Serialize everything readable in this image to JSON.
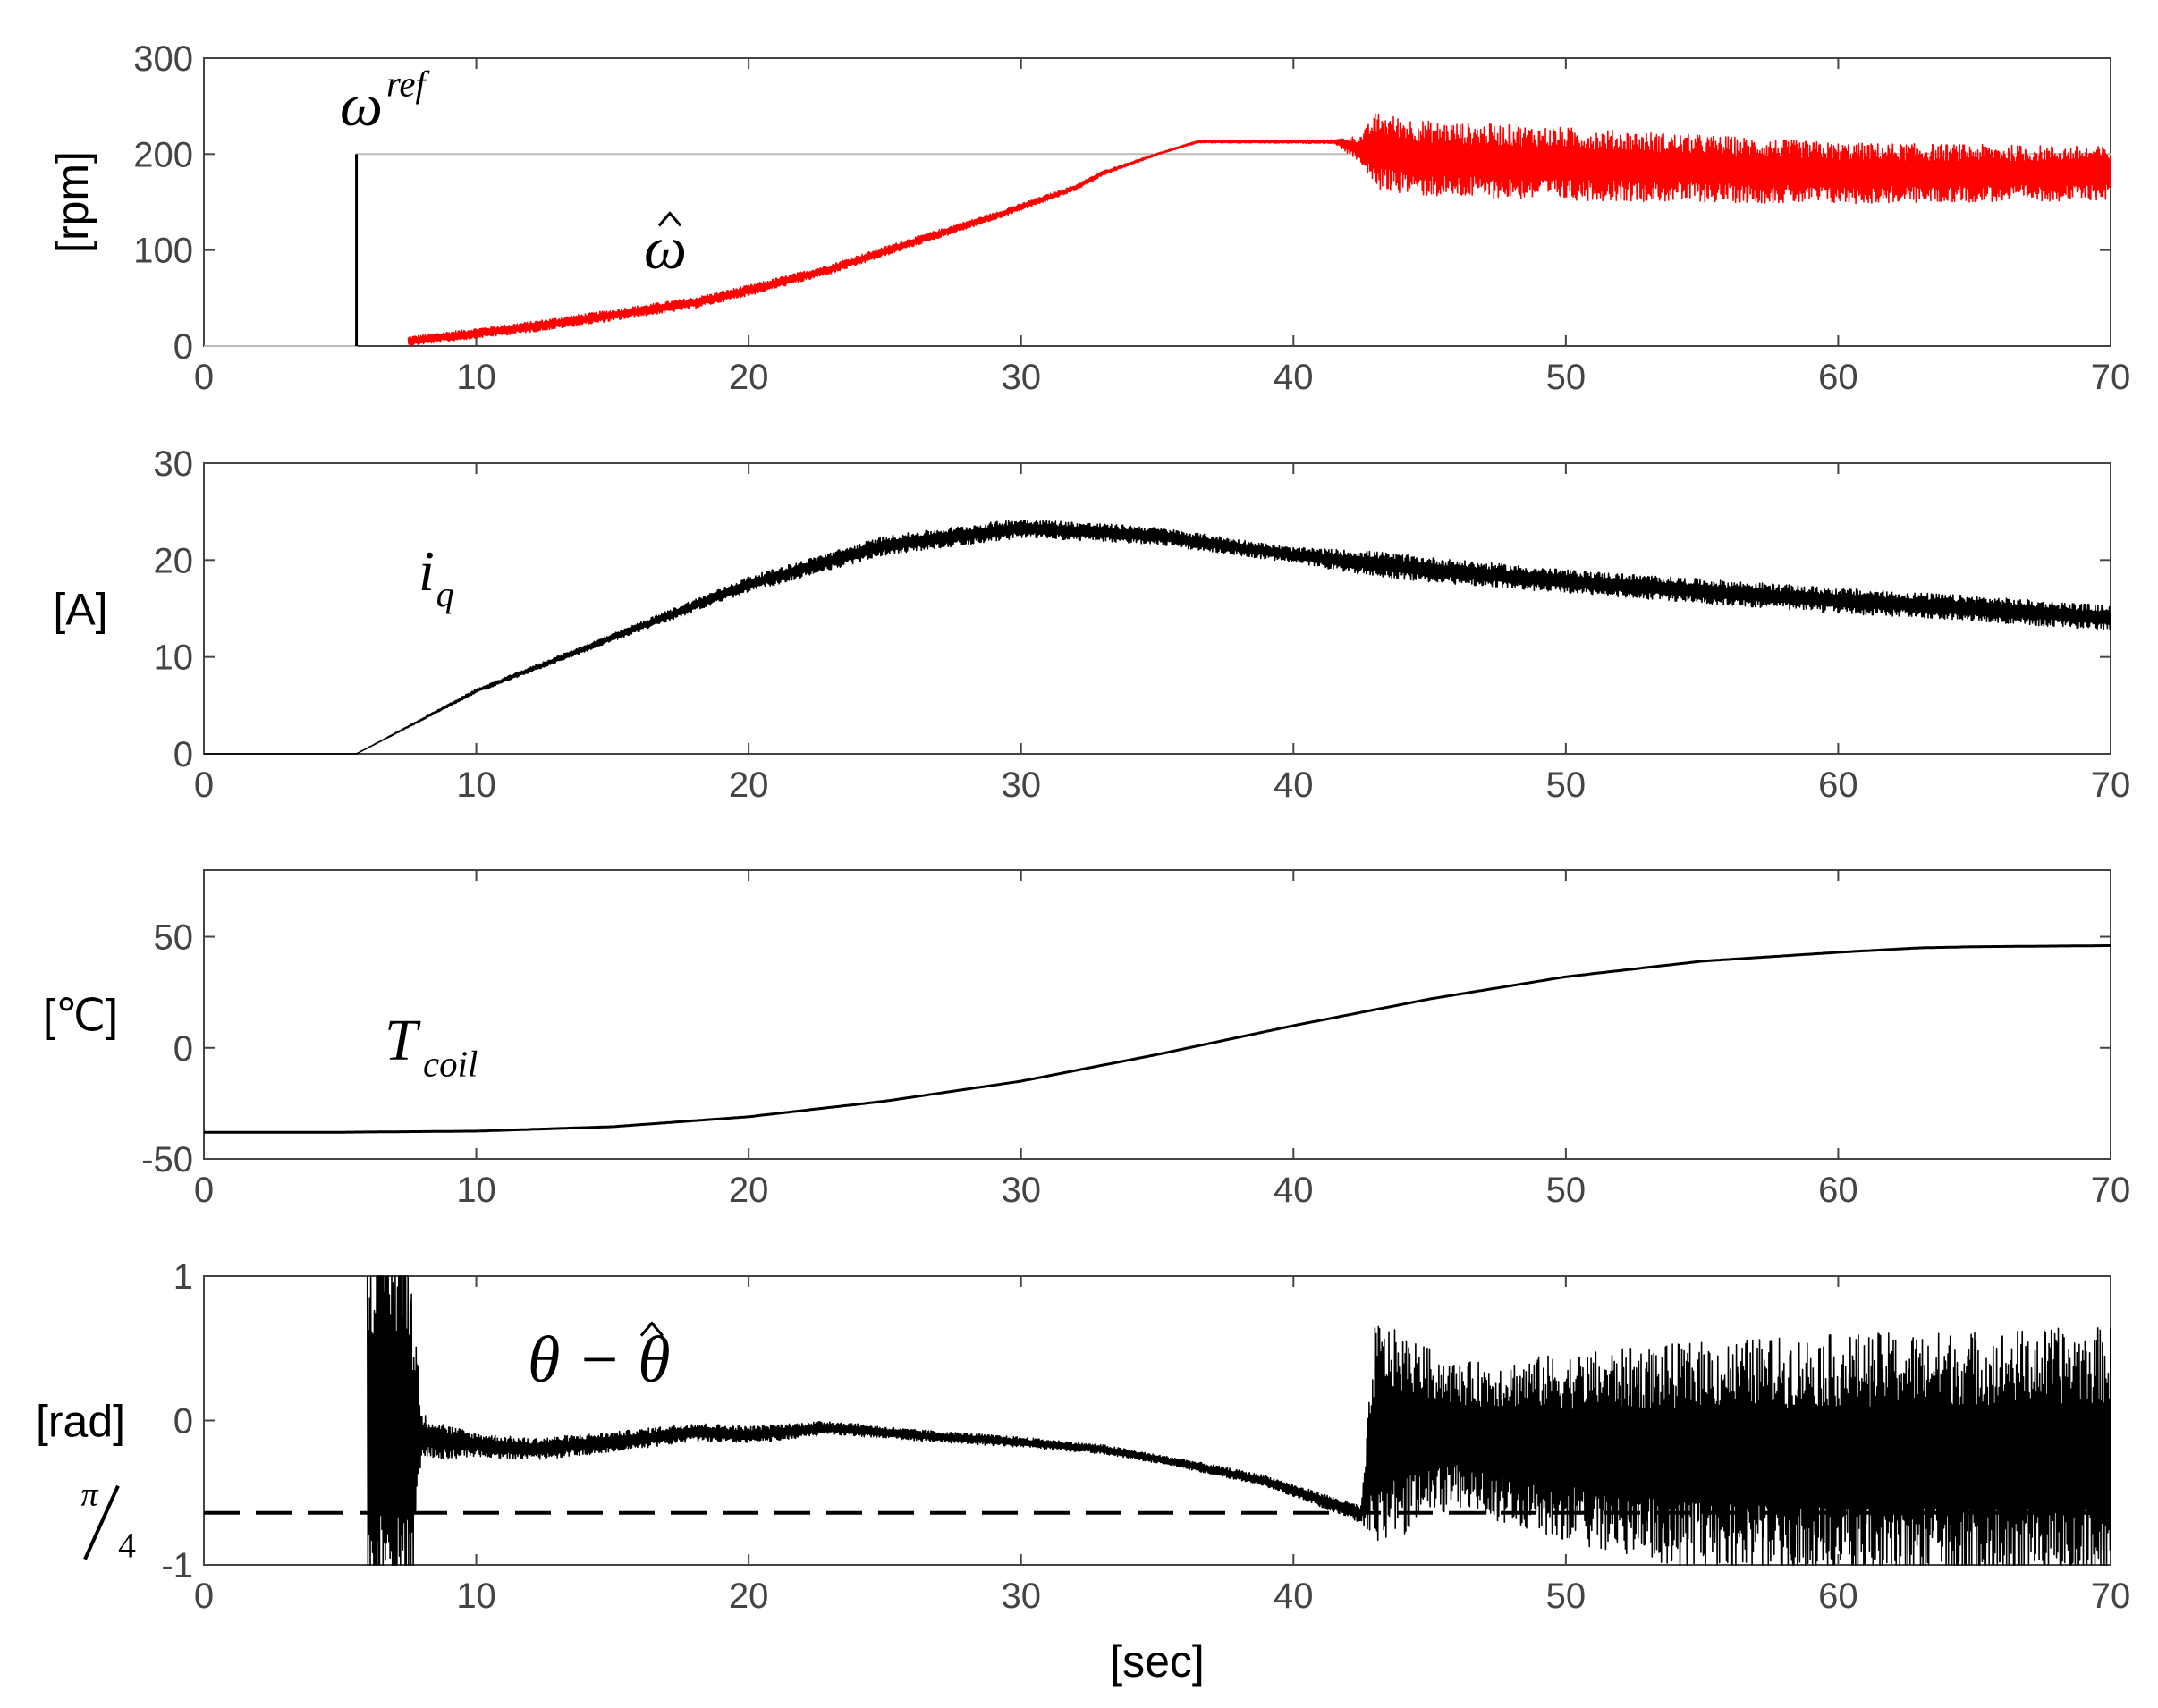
{
  "chart_data": [
    {
      "type": "line",
      "ylabel": "[rpm]",
      "xlabel": "",
      "xlim": [
        0,
        70
      ],
      "ylim": [
        0,
        300
      ],
      "x_ticks": [
        "0",
        "10",
        "20",
        "30",
        "40",
        "50",
        "60",
        "70"
      ],
      "y_ticks": [
        "0",
        "100",
        "200",
        "300"
      ],
      "annotations": [
        {
          "base": "ω",
          "sup": "ref",
          "sub": "",
          "hat": false
        },
        {
          "base": "ω",
          "sup": "",
          "sub": "",
          "hat": true
        }
      ],
      "series": [
        {
          "name": "ω ref",
          "color": "#000000",
          "steps": [
            [
              0,
              0
            ],
            [
              5.6,
              0
            ],
            [
              5.6,
              200
            ],
            [
              70,
              200
            ]
          ]
        },
        {
          "name": "ω hat",
          "color": "#ff0000",
          "kind": "noisy",
          "points": [
            [
              7.5,
              5
            ],
            [
              9,
              10
            ],
            [
              12,
              20
            ],
            [
              15,
              32
            ],
            [
              18,
              45
            ],
            [
              20,
              58
            ],
            [
              23,
              80
            ],
            [
              26,
              108
            ],
            [
              29,
              135
            ],
            [
              32,
              165
            ],
            [
              33,
              180
            ],
            [
              35,
              200
            ],
            [
              36.5,
              213
            ],
            [
              41.5,
              213
            ],
            [
              42.5,
              205
            ],
            [
              45,
              195
            ],
            [
              50,
              190
            ],
            [
              55,
              185
            ],
            [
              60,
              180
            ],
            [
              65,
              180
            ],
            [
              70,
              180
            ]
          ],
          "noise": [
            [
              7.5,
              5
            ],
            [
              15,
              6
            ],
            [
              25,
              5
            ],
            [
              32,
              3
            ],
            [
              35,
              1
            ],
            [
              41.5,
              2
            ],
            [
              42.5,
              15
            ],
            [
              43,
              40
            ],
            [
              50,
              38
            ],
            [
              60,
              32
            ],
            [
              70,
              28
            ]
          ]
        }
      ]
    },
    {
      "type": "line",
      "ylabel": "[A]",
      "xlabel": "",
      "xlim": [
        0,
        70
      ],
      "ylim": [
        0,
        30
      ],
      "x_ticks": [
        "0",
        "10",
        "20",
        "30",
        "40",
        "50",
        "60",
        "70"
      ],
      "y_ticks": [
        "0",
        "10",
        "20",
        "30"
      ],
      "annotations": [
        {
          "base": "i",
          "sup": "",
          "sub": "q",
          "hat": false
        }
      ],
      "series": [
        {
          "name": "i_q",
          "color": "#000000",
          "kind": "noisy",
          "points": [
            [
              0,
              0
            ],
            [
              5.6,
              0
            ],
            [
              10,
              6.5
            ],
            [
              15,
              12
            ],
            [
              20,
              17.5
            ],
            [
              25,
              21.5
            ],
            [
              30,
              23.3
            ],
            [
              35,
              22.5
            ],
            [
              40,
              20.5
            ],
            [
              45,
              19
            ],
            [
              50,
              17.8
            ],
            [
              55,
              16.8
            ],
            [
              60,
              15.8
            ],
            [
              65,
              15
            ],
            [
              70,
              14
            ]
          ],
          "noise": [
            [
              0,
              0
            ],
            [
              5.6,
              0
            ],
            [
              10,
              0.2
            ],
            [
              15,
              0.4
            ],
            [
              20,
              0.8
            ],
            [
              25,
              1.0
            ],
            [
              30,
              1.0
            ],
            [
              40,
              0.8
            ],
            [
              43,
              1.3
            ],
            [
              50,
              1.2
            ],
            [
              60,
              1.3
            ],
            [
              70,
              1.3
            ]
          ]
        }
      ]
    },
    {
      "type": "line",
      "ylabel": "[℃]",
      "xlabel": "",
      "xlim": [
        0,
        70
      ],
      "ylim": [
        -50,
        80
      ],
      "x_ticks": [
        "0",
        "10",
        "20",
        "30",
        "40",
        "50",
        "60",
        "70"
      ],
      "y_ticks": [
        "-50",
        "0",
        "50"
      ],
      "y_tick_values": [
        -50,
        0,
        50
      ],
      "annotations": [
        {
          "base": "T",
          "sup": "",
          "sub": "coil",
          "hat": false
        }
      ],
      "series": [
        {
          "name": "T_coil",
          "color": "#000000",
          "kind": "smooth",
          "points": [
            [
              0,
              -38
            ],
            [
              5,
              -38
            ],
            [
              10,
              -37.5
            ],
            [
              15,
              -35.5
            ],
            [
              20,
              -31
            ],
            [
              25,
              -24
            ],
            [
              30,
              -15
            ],
            [
              35,
              -3
            ],
            [
              40,
              10
            ],
            [
              45,
              22
            ],
            [
              50,
              32
            ],
            [
              55,
              39
            ],
            [
              60,
              43
            ],
            [
              63,
              45
            ],
            [
              65,
              45.5
            ],
            [
              70,
              46
            ]
          ]
        }
      ]
    },
    {
      "type": "line",
      "ylabel": "[rad]",
      "xlabel": "[sec]",
      "xlim": [
        0,
        70
      ],
      "ylim": [
        -1,
        1
      ],
      "x_ticks": [
        "0",
        "10",
        "20",
        "30",
        "40",
        "50",
        "60",
        "70"
      ],
      "y_ticks": [
        "-1",
        "0",
        "1"
      ],
      "extra_y_label": {
        "num": "π",
        "den": "4",
        "value": -0.6388
      },
      "annotations": [
        {
          "base": "θ − θ",
          "sup": "",
          "sub": "",
          "hat": true
        }
      ],
      "series": [
        {
          "name": "θ − θ hat",
          "color": "#000000",
          "kind": "noisy",
          "points": [
            [
              6,
              0
            ],
            [
              8,
              -0.1
            ],
            [
              9,
              -0.15
            ],
            [
              12,
              -0.2
            ],
            [
              15,
              -0.15
            ],
            [
              18,
              -0.08
            ],
            [
              20,
              -0.1
            ],
            [
              23,
              -0.05
            ],
            [
              26,
              -0.1
            ],
            [
              30,
              -0.15
            ],
            [
              33,
              -0.2
            ],
            [
              36,
              -0.3
            ],
            [
              39,
              -0.42
            ],
            [
              41,
              -0.55
            ],
            [
              42.5,
              -0.65
            ],
            [
              43,
              -0.1
            ],
            [
              46,
              -0.1
            ],
            [
              48,
              -0.15
            ],
            [
              51,
              -0.2
            ],
            [
              55,
              -0.25
            ],
            [
              60,
              -0.25
            ],
            [
              65,
              -0.25
            ],
            [
              70,
              -0.25
            ]
          ],
          "noise": [
            [
              6,
              1.5
            ],
            [
              7.5,
              1.5
            ],
            [
              8,
              0.15
            ],
            [
              10,
              0.08
            ],
            [
              20,
              0.06
            ],
            [
              25,
              0.04
            ],
            [
              35,
              0.03
            ],
            [
              40,
              0.04
            ],
            [
              42.5,
              0.06
            ],
            [
              43,
              0.8
            ],
            [
              46,
              0.5
            ],
            [
              50,
              0.65
            ],
            [
              55,
              0.8
            ],
            [
              60,
              0.85
            ],
            [
              70,
              0.9
            ]
          ]
        },
        {
          "name": "π/4 reference",
          "color": "#000000",
          "kind": "dashed",
          "steps": [
            [
              0,
              -0.6388
            ],
            [
              70,
              -0.6388
            ]
          ]
        }
      ]
    }
  ]
}
